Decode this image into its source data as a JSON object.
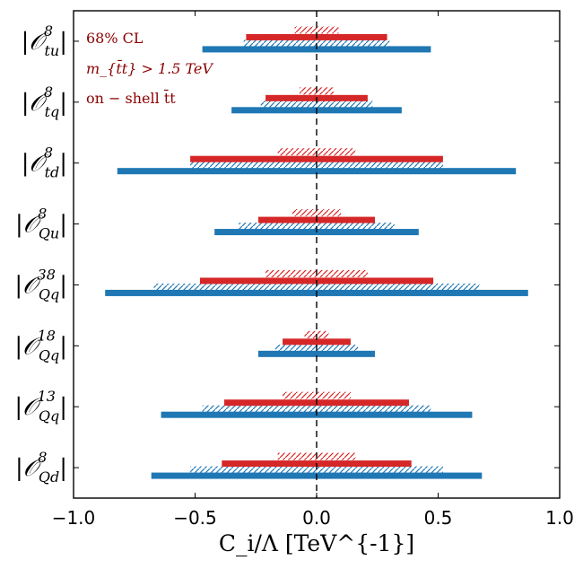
{
  "chart_data": {
    "type": "interval",
    "xlabel": "C_i/Λ [TeV^{-1}]",
    "xlim": [
      -1.0,
      1.0
    ],
    "xticks": [
      "−1.0",
      "−0.5",
      "0.0",
      "0.5",
      "1.0"
    ],
    "xtick_values": [
      -1.0,
      -0.5,
      0.0,
      0.5,
      1.0
    ],
    "reference_line_x": 0.0,
    "annotations": [
      "68% CL",
      "m_{t̄t} > 1.5 TeV",
      "on − shell t̄t"
    ],
    "colors": {
      "red": "#d62728",
      "blue": "#1f77b4",
      "annotation": "#8b0000"
    },
    "categories": [
      {
        "operator": "|O^8_{tu}|",
        "red_solid": [
          -0.29,
          0.29
        ],
        "red_hatched": [
          -0.09,
          0.09
        ],
        "blue_solid": [
          -0.47,
          0.47
        ],
        "blue_hatched": [
          -0.3,
          0.3
        ]
      },
      {
        "operator": "|O^8_{tq}|",
        "red_solid": [
          -0.21,
          0.21
        ],
        "red_hatched": [
          -0.07,
          0.07
        ],
        "blue_solid": [
          -0.35,
          0.35
        ],
        "blue_hatched": [
          -0.23,
          0.23
        ]
      },
      {
        "operator": "|O^8_{td}|",
        "red_solid": [
          -0.52,
          0.52
        ],
        "red_hatched": [
          -0.16,
          0.16
        ],
        "blue_solid": [
          -0.82,
          0.82
        ],
        "blue_hatched": [
          -0.52,
          0.52
        ]
      },
      {
        "operator": "|O^8_{Qu}|",
        "red_solid": [
          -0.24,
          0.24
        ],
        "red_hatched": [
          -0.1,
          0.1
        ],
        "blue_solid": [
          -0.42,
          0.42
        ],
        "blue_hatched": [
          -0.32,
          0.32
        ]
      },
      {
        "operator": "|O^{38}_{Qq}|",
        "red_solid": [
          -0.48,
          0.48
        ],
        "red_hatched": [
          -0.21,
          0.21
        ],
        "blue_solid": [
          -0.87,
          0.87
        ],
        "blue_hatched": [
          -0.67,
          0.67
        ]
      },
      {
        "operator": "|O^{18}_{Qq}|",
        "red_solid": [
          -0.14,
          0.14
        ],
        "red_hatched": [
          -0.05,
          0.05
        ],
        "blue_solid": [
          -0.24,
          0.24
        ],
        "blue_hatched": [
          -0.17,
          0.17
        ]
      },
      {
        "operator": "|O^{13}_{Qq}|",
        "red_solid": [
          -0.38,
          0.38
        ],
        "red_hatched": [
          -0.14,
          0.14
        ],
        "blue_solid": [
          -0.64,
          0.64
        ],
        "blue_hatched": [
          -0.47,
          0.47
        ]
      },
      {
        "operator": "|O^8_{Qd}|",
        "red_solid": [
          -0.39,
          0.39
        ],
        "red_hatched": [
          -0.16,
          0.16
        ],
        "blue_solid": [
          -0.68,
          0.68
        ],
        "blue_hatched": [
          -0.52,
          0.52
        ]
      }
    ]
  }
}
